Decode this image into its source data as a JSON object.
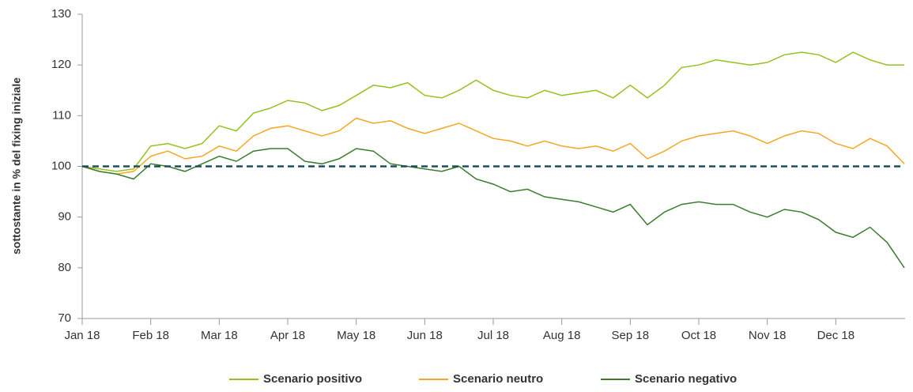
{
  "chart_data": {
    "type": "line",
    "y_label": "sottostante in % del fixing iniziale",
    "categories": [
      "Jan 18",
      null,
      null,
      null,
      "Feb 18",
      null,
      null,
      null,
      "Mar 18",
      null,
      null,
      null,
      "Apr 18",
      null,
      null,
      null,
      "May 18",
      null,
      null,
      null,
      "Jun 18",
      null,
      null,
      null,
      "Jul 18",
      null,
      null,
      null,
      "Aug 18",
      null,
      null,
      null,
      "Sep 18",
      null,
      null,
      null,
      "Oct 18",
      null,
      null,
      null,
      "Nov 18",
      null,
      null,
      null,
      "Dec 18",
      null,
      null,
      null,
      null
    ],
    "series": [
      {
        "name": "Scenario positivo",
        "color": "#95c11f",
        "values": [
          100,
          99.5,
          99,
          99.5,
          104,
          104.5,
          103.5,
          104.5,
          108,
          107,
          110.5,
          111.5,
          113,
          112.5,
          111,
          112,
          114,
          116,
          115.5,
          116.5,
          114,
          113.5,
          115,
          117,
          115,
          114,
          113.5,
          115,
          114,
          114.5,
          115,
          113.5,
          116,
          113.5,
          116,
          119.5,
          120,
          121,
          120.5,
          120,
          120.5,
          122,
          122.5,
          122,
          120.5,
          122.5,
          121,
          120,
          120
        ]
      },
      {
        "name": "Scenario neutro",
        "color": "#f5a623",
        "values": [
          100,
          99,
          98.5,
          99,
          102,
          103,
          101.5,
          102,
          104,
          103,
          106,
          107.5,
          108,
          107,
          106,
          107,
          109.5,
          108.5,
          109,
          107.5,
          106.5,
          107.5,
          108.5,
          107,
          105.5,
          105,
          104,
          105,
          104,
          103.5,
          104,
          103,
          104.5,
          101.5,
          103,
          105,
          106,
          106.5,
          107,
          106,
          104.5,
          106,
          107,
          106.5,
          104.5,
          103.5,
          105.5,
          104,
          100.5
        ]
      },
      {
        "name": "Scenario negativo",
        "color": "#3a7d2c",
        "values": [
          100,
          99,
          98.5,
          97.5,
          100.5,
          100,
          99,
          100.5,
          102,
          101,
          103,
          103.5,
          103.5,
          101,
          100.5,
          101.5,
          103.5,
          103,
          100.5,
          100,
          99.5,
          99,
          100,
          97.5,
          96.5,
          95,
          95.5,
          94,
          93.5,
          93,
          92,
          91,
          92.5,
          88.5,
          91,
          92.5,
          93,
          92.5,
          92.5,
          91,
          90,
          91.5,
          91,
          89.5,
          87,
          86,
          88,
          85,
          80
        ]
      }
    ],
    "reference_line": 100,
    "reference_color": "#1d4e5b",
    "ylim": [
      70,
      130
    ],
    "yticks": [
      70,
      80,
      90,
      100,
      110,
      120,
      130
    ],
    "grid": false
  }
}
